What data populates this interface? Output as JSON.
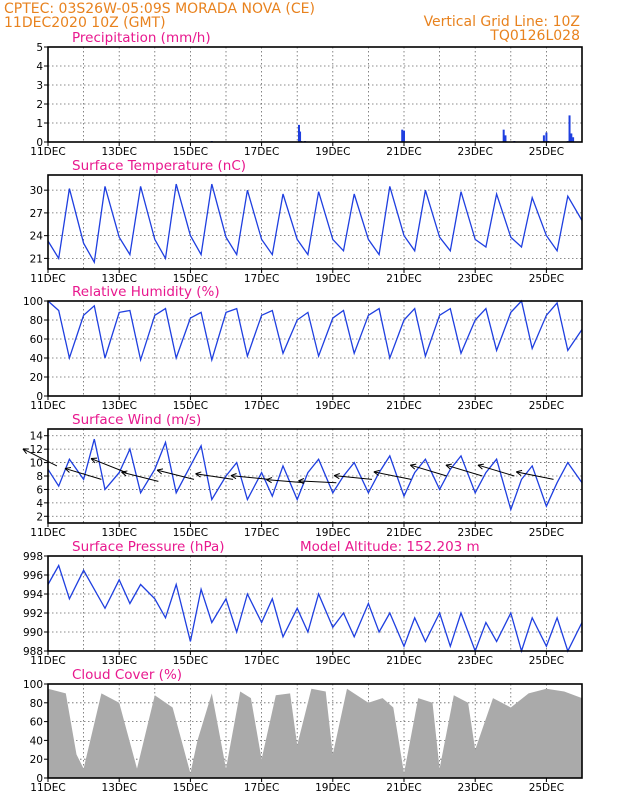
{
  "header": {
    "line1_left": "CPTEC:   03S26W-05:09S   MORADA NOVA (CE)",
    "line2_left": "11DEC2020  10Z (GMT)",
    "line1_right": "Vertical Grid Line: 10Z",
    "line2_right": "TQ0126L028"
  },
  "colors": {
    "header": "#e8821e",
    "panel_title": "#e8188e",
    "series": "#1f3fe0",
    "cloud": "#aaaaaa",
    "wind_arrow": "#000000"
  },
  "x_axis": {
    "labels": [
      "11DEC",
      "13DEC",
      "15DEC",
      "17DEC",
      "19DEC",
      "21DEC",
      "23DEC",
      "25DEC"
    ],
    "day_range": [
      0,
      15
    ],
    "grid": "dotted vertical lines each day"
  },
  "chart_data": [
    {
      "type": "bar",
      "title": "Precipitation (mm/h)",
      "ylim": [
        0,
        5
      ],
      "yticks": [
        0,
        1,
        2,
        3,
        4,
        5
      ],
      "x": [
        4.6,
        7.05,
        7.08,
        7.11,
        7.22,
        9.95,
        10.0,
        12.8,
        12.85,
        13.1,
        13.93,
        14.0,
        14.05,
        14.6,
        14.65,
        14.7,
        14.75
      ],
      "values": [
        0.05,
        0.9,
        0.55,
        0.05,
        0.05,
        0.65,
        0.6,
        0.65,
        0.35,
        0.05,
        0.35,
        0.5,
        0.05,
        0.05,
        1.4,
        0.45,
        0.25
      ]
    },
    {
      "type": "line",
      "title": "Surface Temperature (nC)",
      "ylim": [
        19.6,
        32.0
      ],
      "yticks": [
        21,
        24,
        27,
        30
      ],
      "x": [
        0.0,
        0.3,
        0.6,
        1.0,
        1.3,
        1.6,
        2.0,
        2.3,
        2.6,
        3.0,
        3.3,
        3.6,
        4.0,
        4.3,
        4.6,
        5.0,
        5.3,
        5.6,
        6.0,
        6.3,
        6.6,
        7.0,
        7.3,
        7.6,
        8.0,
        8.3,
        8.6,
        9.0,
        9.3,
        9.6,
        10.0,
        10.3,
        10.6,
        11.0,
        11.3,
        11.6,
        12.0,
        12.3,
        12.6,
        13.0,
        13.3,
        13.6,
        14.0,
        14.3,
        14.6,
        15.0
      ],
      "values": [
        23.3,
        21.0,
        30.2,
        23.0,
        20.5,
        30.5,
        23.8,
        21.5,
        30.5,
        23.5,
        21.0,
        30.8,
        24.0,
        21.5,
        30.8,
        23.8,
        21.5,
        30.0,
        23.5,
        21.5,
        29.5,
        23.5,
        21.5,
        29.8,
        23.5,
        22.0,
        29.5,
        23.5,
        21.5,
        30.5,
        24.0,
        22.0,
        30.0,
        23.8,
        22.0,
        29.8,
        23.5,
        22.5,
        29.5,
        23.8,
        22.5,
        29.0,
        24.0,
        22.0,
        29.2,
        26.0
      ]
    },
    {
      "type": "line",
      "title": "Relative Humidity (%)",
      "ylim": [
        0,
        100
      ],
      "yticks": [
        0,
        20,
        40,
        60,
        80,
        100
      ],
      "x": [
        0.0,
        0.3,
        0.6,
        1.0,
        1.3,
        1.6,
        2.0,
        2.3,
        2.6,
        3.0,
        3.3,
        3.6,
        4.0,
        4.3,
        4.6,
        5.0,
        5.3,
        5.6,
        6.0,
        6.3,
        6.6,
        7.0,
        7.3,
        7.6,
        8.0,
        8.3,
        8.6,
        9.0,
        9.3,
        9.6,
        10.0,
        10.3,
        10.6,
        11.0,
        11.3,
        11.6,
        12.0,
        12.3,
        12.6,
        13.0,
        13.3,
        13.6,
        14.0,
        14.3,
        14.6,
        15.0
      ],
      "values": [
        100,
        90,
        40,
        85,
        95,
        40,
        88,
        90,
        38,
        85,
        92,
        40,
        82,
        88,
        38,
        88,
        92,
        42,
        85,
        90,
        45,
        80,
        88,
        42,
        82,
        90,
        45,
        85,
        92,
        40,
        80,
        92,
        42,
        85,
        92,
        45,
        80,
        92,
        48,
        88,
        100,
        50,
        85,
        98,
        48,
        70
      ]
    },
    {
      "type": "line",
      "title": "Surface Wind (m/s)",
      "ylim": [
        1,
        15
      ],
      "yticks": [
        2,
        4,
        6,
        8,
        10,
        12,
        14
      ],
      "x": [
        0.0,
        0.3,
        0.6,
        1.0,
        1.3,
        1.6,
        2.0,
        2.3,
        2.6,
        3.0,
        3.3,
        3.6,
        4.0,
        4.3,
        4.6,
        5.0,
        5.3,
        5.6,
        6.0,
        6.3,
        6.6,
        7.0,
        7.3,
        7.6,
        8.0,
        8.3,
        8.6,
        9.0,
        9.3,
        9.6,
        10.0,
        10.3,
        10.6,
        11.0,
        11.3,
        11.6,
        12.0,
        12.3,
        12.6,
        13.0,
        13.3,
        13.6,
        14.0,
        14.3,
        14.6,
        15.0
      ],
      "values": [
        9.0,
        6.5,
        10.5,
        7.5,
        13.5,
        6.0,
        8.5,
        12.0,
        5.5,
        9.0,
        13.0,
        5.5,
        9.5,
        12.5,
        4.5,
        8.0,
        10.0,
        4.5,
        8.5,
        5.0,
        9.5,
        4.5,
        8.5,
        10.5,
        5.5,
        8.0,
        10.0,
        5.5,
        8.5,
        11.0,
        5.0,
        8.5,
        10.5,
        6.0,
        9.0,
        11.0,
        5.5,
        8.5,
        10.5,
        3.0,
        7.5,
        9.5,
        3.5,
        7.0,
        10.0,
        7.0
      ],
      "wind_vectors": [
        {
          "t": 0.25,
          "speed": 9.5,
          "u": -1.0,
          "v": 0.5
        },
        {
          "t": 1.5,
          "speed": 7.5,
          "u": -1.0,
          "v": 0.3
        },
        {
          "t": 2.2,
          "speed": 8.5,
          "u": -1.0,
          "v": 0.4
        },
        {
          "t": 3.1,
          "speed": 7.2,
          "u": -1.0,
          "v": 0.25
        },
        {
          "t": 4.1,
          "speed": 7.5,
          "u": -1.0,
          "v": 0.25
        },
        {
          "t": 5.2,
          "speed": 7.5,
          "u": -1.0,
          "v": 0.15
        },
        {
          "t": 6.2,
          "speed": 7.5,
          "u": -1.0,
          "v": 0.1
        },
        {
          "t": 7.2,
          "speed": 7.0,
          "u": -1.0,
          "v": 0.08
        },
        {
          "t": 8.1,
          "speed": 7.0,
          "u": -1.0,
          "v": 0.05
        },
        {
          "t": 9.1,
          "speed": 7.5,
          "u": -1.0,
          "v": 0.1
        },
        {
          "t": 10.2,
          "speed": 7.5,
          "u": -1.0,
          "v": 0.2
        },
        {
          "t": 11.2,
          "speed": 8.0,
          "u": -1.0,
          "v": 0.3
        },
        {
          "t": 12.2,
          "speed": 8.0,
          "u": -1.0,
          "v": 0.3
        },
        {
          "t": 13.1,
          "speed": 8.0,
          "u": -1.0,
          "v": 0.3
        },
        {
          "t": 14.2,
          "speed": 7.5,
          "u": -1.0,
          "v": 0.2
        }
      ]
    },
    {
      "type": "line",
      "title": "Surface Pressure (hPa)",
      "annotation": "Model Altitude: 152.203  m",
      "ylim": [
        988,
        998
      ],
      "yticks": [
        988,
        990,
        992,
        994,
        996,
        998
      ],
      "x": [
        0.0,
        0.3,
        0.6,
        1.0,
        1.3,
        1.6,
        2.0,
        2.3,
        2.6,
        3.0,
        3.3,
        3.6,
        4.0,
        4.3,
        4.6,
        5.0,
        5.3,
        5.6,
        6.0,
        6.3,
        6.6,
        7.0,
        7.3,
        7.6,
        8.0,
        8.3,
        8.6,
        9.0,
        9.3,
        9.6,
        10.0,
        10.3,
        10.6,
        11.0,
        11.3,
        11.6,
        12.0,
        12.3,
        12.6,
        13.0,
        13.3,
        13.6,
        14.0,
        14.3,
        14.6,
        15.0
      ],
      "values": [
        995.0,
        997.0,
        993.5,
        996.5,
        994.5,
        992.5,
        995.5,
        993.0,
        995.0,
        993.5,
        991.5,
        995.0,
        989.0,
        994.5,
        991.0,
        993.5,
        990.0,
        994.0,
        991.0,
        993.5,
        989.5,
        992.5,
        990.0,
        994.0,
        990.5,
        992.0,
        989.5,
        993.0,
        990.0,
        992.0,
        988.5,
        991.5,
        989.0,
        992.0,
        988.5,
        992.0,
        988.0,
        991.0,
        989.0,
        992.0,
        988.0,
        991.5,
        988.5,
        991.5,
        988.0,
        991.0
      ]
    },
    {
      "type": "area",
      "title": "Cloud Cover (%)",
      "ylim": [
        0,
        100
      ],
      "yticks": [
        0,
        20,
        40,
        60,
        80,
        100
      ],
      "x": [
        0.0,
        0.5,
        0.8,
        1.0,
        1.5,
        2.0,
        2.5,
        3.0,
        3.5,
        4.0,
        4.2,
        4.6,
        5.0,
        5.4,
        5.7,
        6.0,
        6.4,
        6.8,
        7.0,
        7.4,
        7.8,
        8.0,
        8.4,
        8.8,
        9.0,
        9.4,
        9.7,
        10.0,
        10.4,
        10.8,
        11.0,
        11.4,
        11.8,
        12.0,
        12.5,
        13.0,
        13.5,
        14.0,
        14.5,
        15.0
      ],
      "values": [
        95,
        90,
        25,
        10,
        90,
        80,
        10,
        88,
        75,
        5,
        40,
        90,
        10,
        92,
        85,
        20,
        88,
        90,
        35,
        95,
        92,
        25,
        95,
        85,
        80,
        85,
        75,
        5,
        85,
        80,
        10,
        88,
        80,
        30,
        85,
        75,
        90,
        95,
        92,
        85
      ]
    }
  ]
}
